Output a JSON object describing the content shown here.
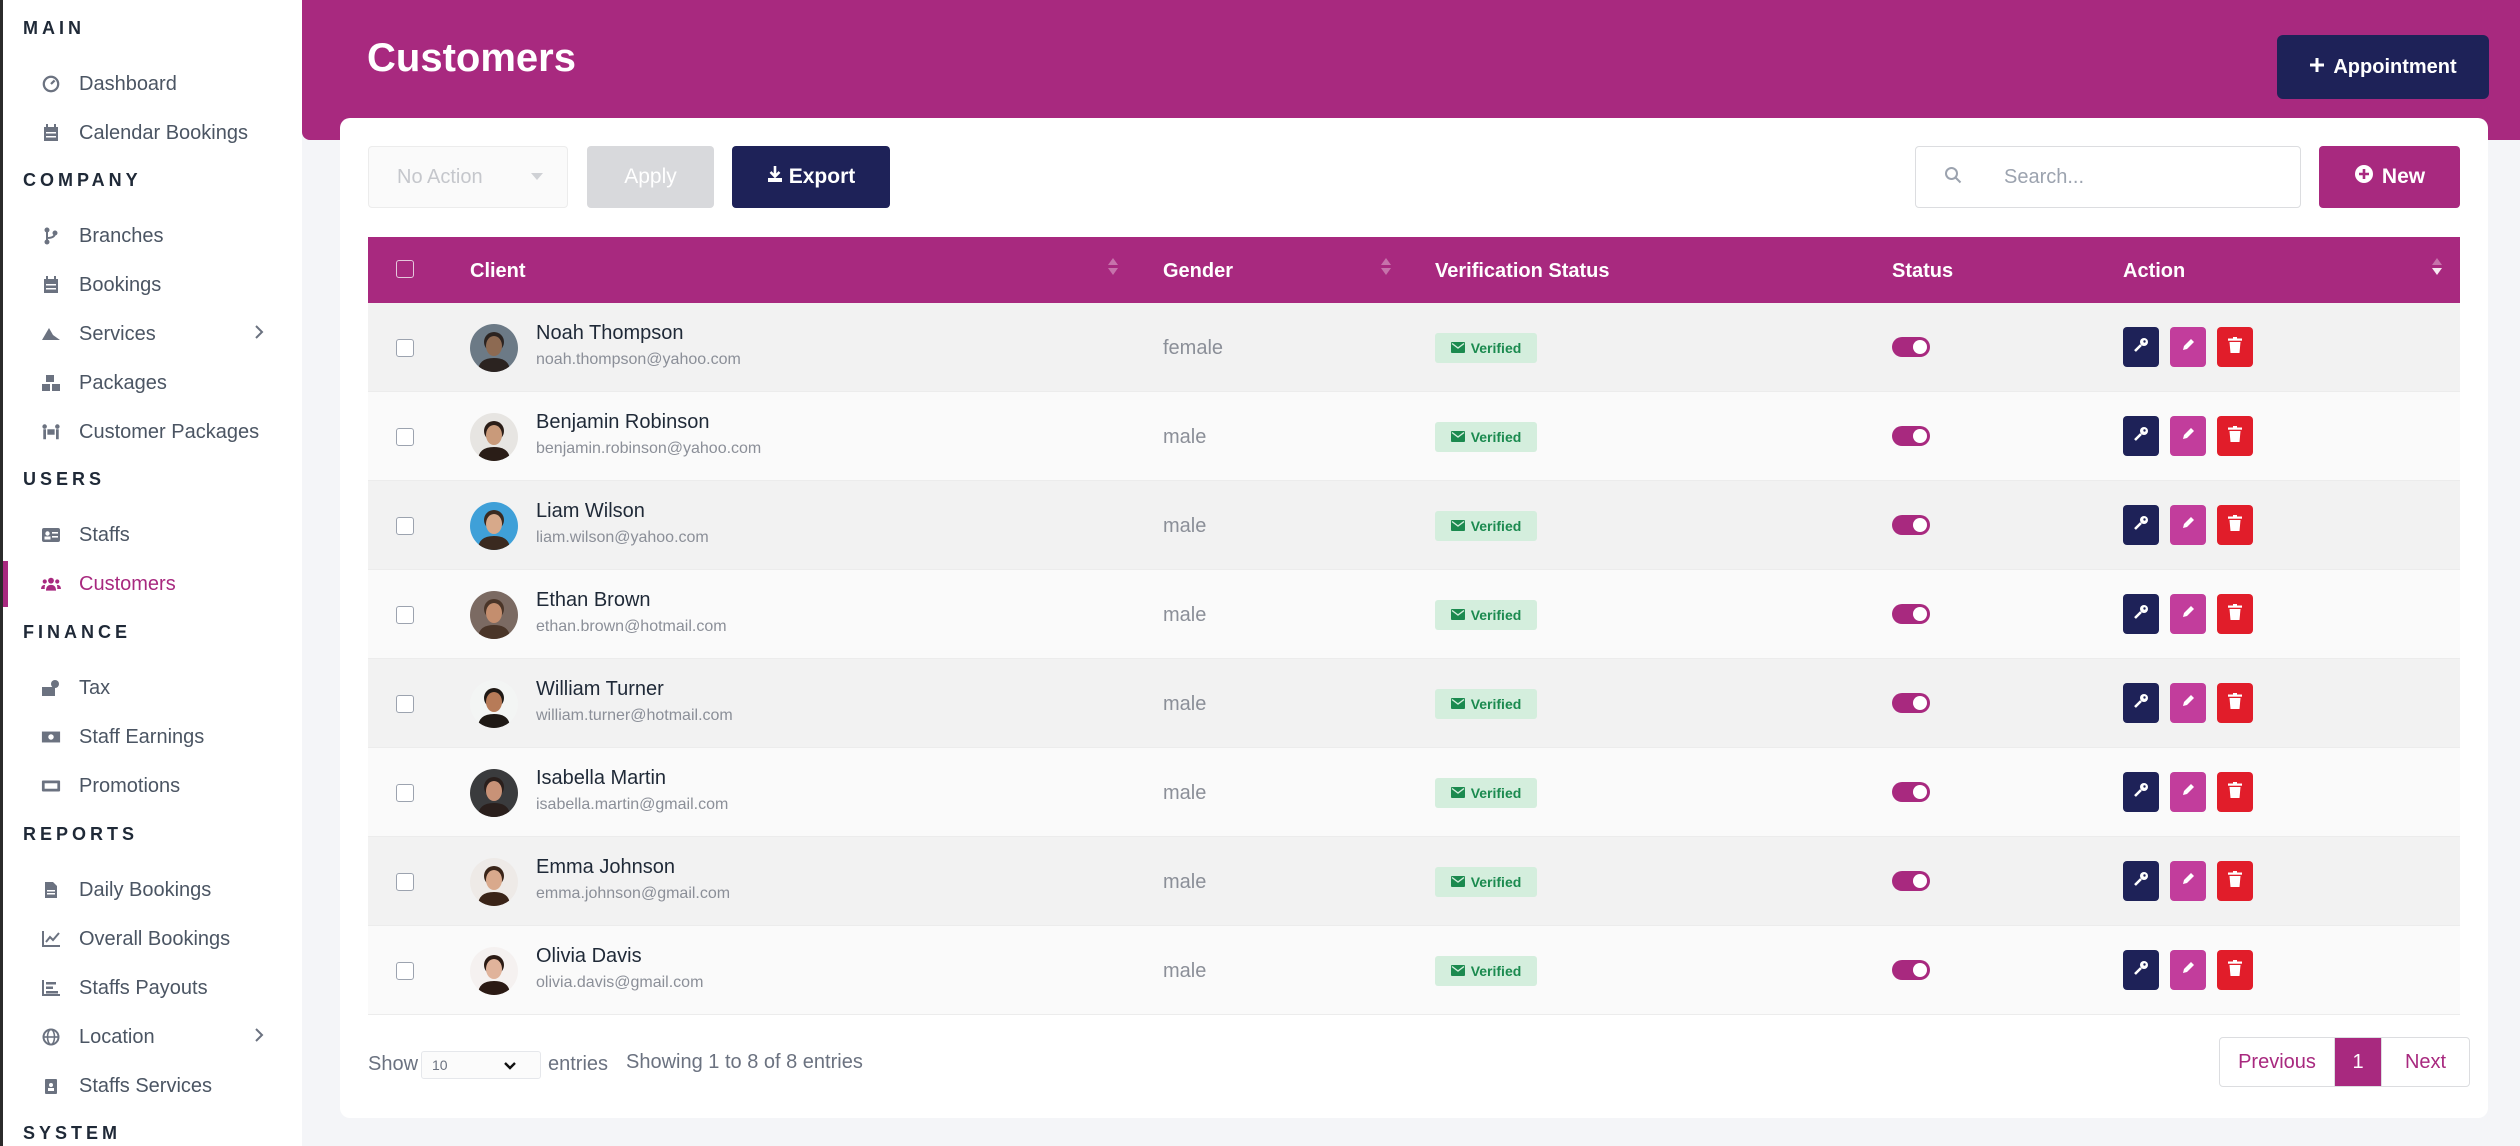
{
  "sidebar": {
    "sections": [
      {
        "title": "MAIN",
        "items": [
          {
            "label": "Dashboard",
            "icon": "dashboard-icon"
          },
          {
            "label": "Calendar Bookings",
            "icon": "calendar-icon"
          }
        ]
      },
      {
        "title": "COMPANY",
        "items": [
          {
            "label": "Branches",
            "icon": "branch-icon"
          },
          {
            "label": "Bookings",
            "icon": "calendar-icon"
          },
          {
            "label": "Services",
            "icon": "services-icon"
          },
          {
            "label": "Packages",
            "icon": "packages-icon"
          },
          {
            "label": "Customer Packages",
            "icon": "people-carry-icon"
          }
        ]
      },
      {
        "title": "USERS",
        "items": [
          {
            "label": "Staffs",
            "icon": "id-card-icon"
          },
          {
            "label": "Customers",
            "icon": "users-icon"
          }
        ]
      },
      {
        "title": "FINANCE",
        "items": [
          {
            "label": "Tax",
            "icon": "tax-icon"
          },
          {
            "label": "Staff Earnings",
            "icon": "money-icon"
          },
          {
            "label": "Promotions",
            "icon": "ticket-icon"
          }
        ]
      },
      {
        "title": "REPORTS",
        "items": [
          {
            "label": "Daily Bookings",
            "icon": "file-icon"
          },
          {
            "label": "Overall Bookings",
            "icon": "line-chart-icon"
          },
          {
            "label": "Staffs Payouts",
            "icon": "bar-chart-icon"
          },
          {
            "label": "Location",
            "icon": "globe-icon"
          },
          {
            "label": "Staffs Services",
            "icon": "clipboard-icon"
          }
        ]
      },
      {
        "title": "SYSTEM",
        "items": []
      }
    ],
    "active": "Customers"
  },
  "header": {
    "title": "Customers",
    "appointment_label": "Appointment"
  },
  "toolbar": {
    "bulk_action_value": "No Action",
    "apply_label": "Apply",
    "export_label": "Export",
    "search_placeholder": "Search...",
    "new_label": "New"
  },
  "table": {
    "columns": [
      "Client",
      "Gender",
      "Verification Status",
      "Status",
      "Action"
    ],
    "rows": [
      {
        "name": "Noah Thompson",
        "email": "noah.thompson@yahoo.com",
        "gender": "female",
        "verification": "Verified",
        "status_on": true,
        "avatar_skin": "#8d6a52",
        "avatar_hair": "#2b2320",
        "avatar_bg": "#6c7a86"
      },
      {
        "name": "Benjamin Robinson",
        "email": "benjamin.robinson@yahoo.com",
        "gender": "male",
        "verification": "Verified",
        "status_on": true,
        "avatar_skin": "#c99a7a",
        "avatar_hair": "#2a1d17",
        "avatar_bg": "#e7e5e2"
      },
      {
        "name": "Liam Wilson",
        "email": "liam.wilson@yahoo.com",
        "gender": "male",
        "verification": "Verified",
        "status_on": true,
        "avatar_skin": "#d7a98a",
        "avatar_hair": "#3a2a20",
        "avatar_bg": "#3fa0d8"
      },
      {
        "name": "Ethan Brown",
        "email": "ethan.brown@hotmail.com",
        "gender": "male",
        "verification": "Verified",
        "status_on": true,
        "avatar_skin": "#c48e6e",
        "avatar_hair": "#4a3528",
        "avatar_bg": "#7b6a62"
      },
      {
        "name": "William Turner",
        "email": "william.turner@hotmail.com",
        "gender": "male",
        "verification": "Verified",
        "status_on": true,
        "avatar_skin": "#b77b58",
        "avatar_hair": "#1f1915",
        "avatar_bg": "#f3f5f4"
      },
      {
        "name": "Isabella Martin",
        "email": "isabella.martin@gmail.com",
        "gender": "male",
        "verification": "Verified",
        "status_on": true,
        "avatar_skin": "#c89277",
        "avatar_hair": "#2a1f1c",
        "avatar_bg": "#3a3b3d"
      },
      {
        "name": "Emma Johnson",
        "email": "emma.johnson@gmail.com",
        "gender": "male",
        "verification": "Verified",
        "status_on": true,
        "avatar_skin": "#d9a98c",
        "avatar_hair": "#3a2418",
        "avatar_bg": "#eeeae7"
      },
      {
        "name": "Olivia Davis",
        "email": "olivia.davis@gmail.com",
        "gender": "male",
        "verification": "Verified",
        "status_on": true,
        "avatar_skin": "#e0b39b",
        "avatar_hair": "#2b1a14",
        "avatar_bg": "#f5f1f0"
      }
    ]
  },
  "footer": {
    "show_label": "Show",
    "page_length": "10",
    "entries_label": "entries",
    "info": "Showing 1 to 8 of 8 entries",
    "previous_label": "Previous",
    "current_page": "1",
    "next_label": "Next"
  },
  "colors": {
    "brand": "#a8297f",
    "navy": "#1e2258",
    "danger": "#e11d2a",
    "success_bg": "#d4eedd",
    "success_text": "#1b8a4f"
  }
}
